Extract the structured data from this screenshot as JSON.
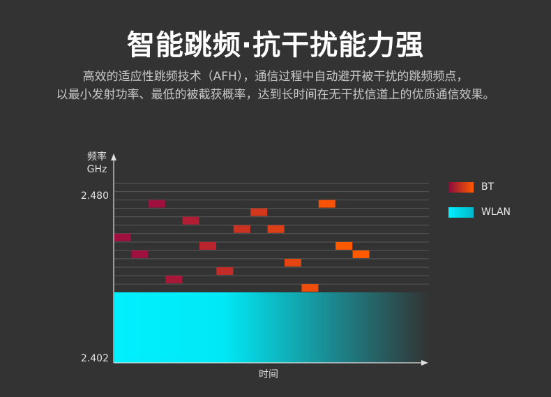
{
  "header": {
    "title": "智能跳频·抗干扰能力强",
    "subtitle_line1": "高效的适应性跳频技术（AFH），通信过程中自动避开被干扰的跳频频点，",
    "subtitle_line2": "以最小发射功率、最低的被截获概率，达到长时间在无干扰信道上的优质通信效果。"
  },
  "chart_data": {
    "type": "heatmap",
    "xlabel": "时间",
    "ylabel_line1": "频率",
    "ylabel_line2": "GHz",
    "y_tick_top": "2.480",
    "y_tick_bottom": "2.402",
    "time_slots": 18,
    "channel_rows": 13,
    "wlan": {
      "name": "WLAN",
      "row_range": [
        0,
        13
      ],
      "color_start": "#00f0ff",
      "color_end": "#333333"
    },
    "bt": {
      "name": "BT",
      "color_start": "#a0103e",
      "color_end": "#ff5a00",
      "hops": [
        {
          "t": 0,
          "row": 6
        },
        {
          "t": 1,
          "row": 8
        },
        {
          "t": 2,
          "row": 2
        },
        {
          "t": 3,
          "row": 11
        },
        {
          "t": 4,
          "row": 4
        },
        {
          "t": 5,
          "row": 7
        },
        {
          "t": 6,
          "row": 10
        },
        {
          "t": 7,
          "row": 5
        },
        {
          "t": 8,
          "row": 3
        },
        {
          "t": 9,
          "row": 5
        },
        {
          "t": 10,
          "row": 9
        },
        {
          "t": 11,
          "row": 12
        },
        {
          "t": 12,
          "row": 2
        },
        {
          "t": 13,
          "row": 7
        },
        {
          "t": 14,
          "row": 8
        }
      ]
    }
  }
}
